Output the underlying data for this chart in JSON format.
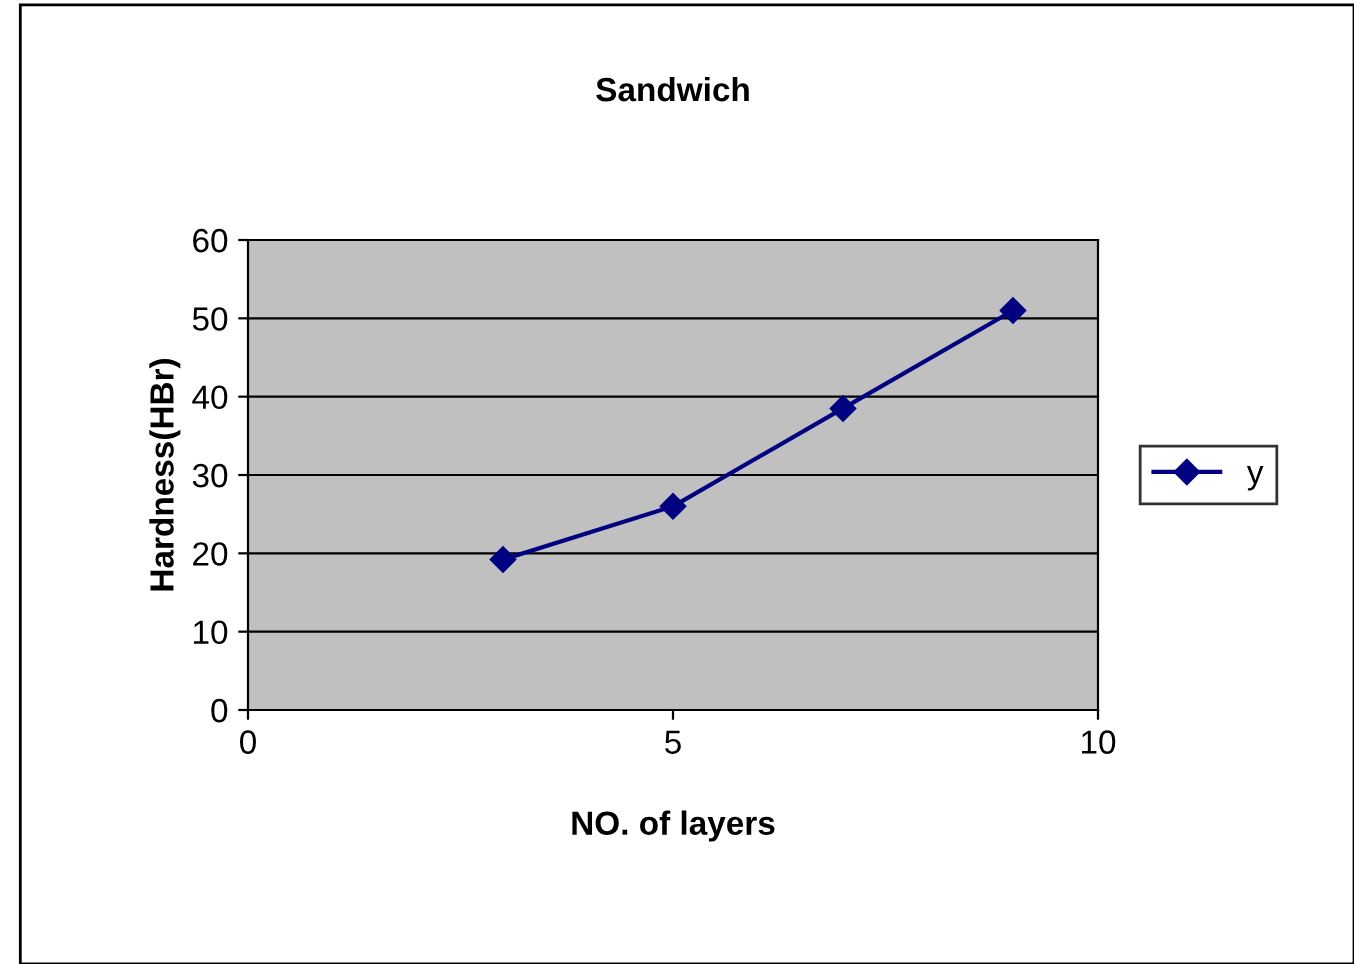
{
  "chart_data": {
    "type": "line",
    "title": "Sandwich",
    "xlabel": "NO. of layers",
    "ylabel": "Hardness(HBr)",
    "x": [
      3,
      5,
      7,
      9
    ],
    "series": [
      {
        "name": "y",
        "color": "#000080",
        "values": [
          19.2,
          26,
          38.5,
          51
        ]
      }
    ],
    "xlim": [
      0,
      10
    ],
    "xticks": [
      0,
      5,
      10
    ],
    "ylim": [
      0,
      60
    ],
    "yticks": [
      0,
      10,
      20,
      30,
      40,
      50,
      60
    ],
    "grid": "y",
    "legend": "right",
    "marker": "diamond",
    "line_style": "solid"
  }
}
